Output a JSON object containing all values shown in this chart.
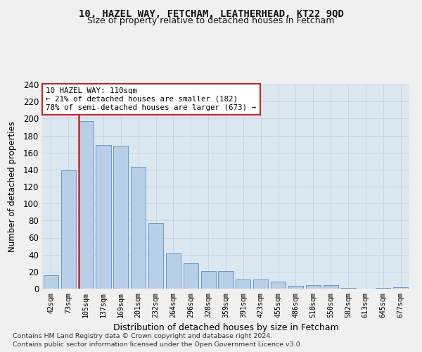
{
  "title1": "10, HAZEL WAY, FETCHAM, LEATHERHEAD, KT22 9QD",
  "title2": "Size of property relative to detached houses in Fetcham",
  "xlabel": "Distribution of detached houses by size in Fetcham",
  "ylabel": "Number of detached properties",
  "categories": [
    "42sqm",
    "73sqm",
    "105sqm",
    "137sqm",
    "169sqm",
    "201sqm",
    "232sqm",
    "264sqm",
    "296sqm",
    "328sqm",
    "359sqm",
    "391sqm",
    "423sqm",
    "455sqm",
    "486sqm",
    "518sqm",
    "550sqm",
    "582sqm",
    "613sqm",
    "645sqm",
    "677sqm"
  ],
  "values": [
    16,
    139,
    197,
    169,
    168,
    143,
    77,
    41,
    30,
    21,
    21,
    11,
    11,
    8,
    3,
    4,
    4,
    1,
    0,
    1,
    2
  ],
  "bar_color": "#b8cfe8",
  "bar_edge_color": "#6699cc",
  "highlight_bar_index": 2,
  "annotation_text1": "10 HAZEL WAY: 110sqm",
  "annotation_text2": "← 21% of detached houses are smaller (182)",
  "annotation_text3": "78% of semi-detached houses are larger (673) →",
  "annotation_box_color": "#ffffff",
  "annotation_edge_color": "#cc2222",
  "vline_color": "#cc2222",
  "ylim": [
    0,
    240
  ],
  "yticks": [
    0,
    20,
    40,
    60,
    80,
    100,
    120,
    140,
    160,
    180,
    200,
    220,
    240
  ],
  "grid_color": "#c8d4e8",
  "bg_color": "#dce8f0",
  "fig_bg_color": "#f0f0f0",
  "footnote1": "Contains HM Land Registry data © Crown copyright and database right 2024.",
  "footnote2": "Contains public sector information licensed under the Open Government Licence v3.0."
}
